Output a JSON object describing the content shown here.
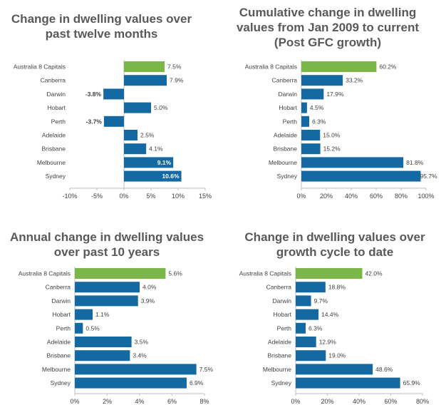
{
  "chart_data": [
    {
      "type": "bar",
      "orientation": "horizontal",
      "title": "Change in dwelling values over past twelve months",
      "categories": [
        "Australia  8 Capitals",
        "Canberra",
        "Darwin",
        "Hobart",
        "Perth",
        "Adelaide",
        "Brisbane",
        "Melbourne",
        "Sydney"
      ],
      "values": [
        7.5,
        7.9,
        -3.8,
        5.0,
        -3.7,
        2.5,
        4.1,
        9.1,
        10.6
      ],
      "data_labels": [
        "7.5%",
        "7.9%",
        "-3.8%",
        "5.0%",
        "-3.7%",
        "2.5%",
        "4.1%",
        "9.1%",
        "10.6%"
      ],
      "xlim": [
        -10,
        15
      ],
      "xticks": [
        -10,
        -5,
        0,
        5,
        10,
        15
      ],
      "xtick_labels": [
        "-10%",
        "-5%",
        "0%",
        "5%",
        "10%",
        "15%"
      ],
      "xlabel": "",
      "ylabel": "",
      "highlight_color": "#7ab648",
      "bar_color": "#1569a3"
    },
    {
      "type": "bar",
      "orientation": "horizontal",
      "title": "Cumulative change in dwelling values from Jan 2009 to current (Post GFC growth)",
      "categories": [
        "Australia  8 Capitals",
        "Canberra",
        "Darwin",
        "Hobart",
        "Perth",
        "Adelaide",
        "Brisbane",
        "Melbourne",
        "Sydney"
      ],
      "values": [
        60.2,
        33.2,
        17.9,
        4.5,
        6.3,
        15.0,
        15.2,
        81.8,
        95.7
      ],
      "data_labels": [
        "60.2%",
        "33.2%",
        "17.9%",
        "4.5%",
        "6.3%",
        "15.0%",
        "15.2%",
        "81.8%",
        "95.7%"
      ],
      "xlim": [
        0,
        100
      ],
      "xticks": [
        0,
        20,
        40,
        60,
        80,
        100
      ],
      "xtick_labels": [
        "0%",
        "20%",
        "40%",
        "60%",
        "80%",
        "100%"
      ],
      "xlabel": "",
      "ylabel": "",
      "highlight_color": "#7ab648",
      "bar_color": "#1569a3"
    },
    {
      "type": "bar",
      "orientation": "horizontal",
      "title": "Annual change in dwelling values over past 10 years",
      "categories": [
        "Australia  8 Capitals",
        "Canberra",
        "Darwin",
        "Hobart",
        "Perth",
        "Adelaide",
        "Brisbane",
        "Melbourne",
        "Sydney"
      ],
      "values": [
        5.6,
        4.0,
        3.9,
        1.1,
        0.5,
        3.5,
        3.4,
        7.5,
        6.9
      ],
      "data_labels": [
        "5.6%",
        "4.0%",
        "3.9%",
        "1.1%",
        "0.5%",
        "3.5%",
        "3.4%",
        "7.5%",
        "6.9%"
      ],
      "xlim": [
        0,
        8
      ],
      "xticks": [
        0,
        2,
        4,
        6,
        8
      ],
      "xtick_labels": [
        "0%",
        "2%",
        "4%",
        "6%",
        "8%"
      ],
      "xlabel": "",
      "ylabel": "",
      "highlight_color": "#7ab648",
      "bar_color": "#1569a3"
    },
    {
      "type": "bar",
      "orientation": "horizontal",
      "title": "Change in dwelling values over growth cycle to date",
      "categories": [
        "Australia  8 Capitals",
        "Canberra",
        "Darwin",
        "Hobart",
        "Perth",
        "Adelaide",
        "Brisbane",
        "Melbourne",
        "Sydney"
      ],
      "values": [
        42.0,
        18.8,
        9.7,
        14.4,
        6.3,
        12.9,
        19.0,
        48.6,
        65.9
      ],
      "data_labels": [
        "42.0%",
        "18.8%",
        "9.7%",
        "14.4%",
        "6.3%",
        "12.9%",
        "19.0%",
        "48.6%",
        "65.9%"
      ],
      "xlim": [
        0,
        80
      ],
      "xticks": [
        0,
        20,
        40,
        60,
        80
      ],
      "xtick_labels": [
        "0%",
        "20%",
        "40%",
        "60%",
        "80%"
      ],
      "xlabel": "",
      "ylabel": "",
      "highlight_color": "#7ab648",
      "bar_color": "#1569a3"
    }
  ]
}
